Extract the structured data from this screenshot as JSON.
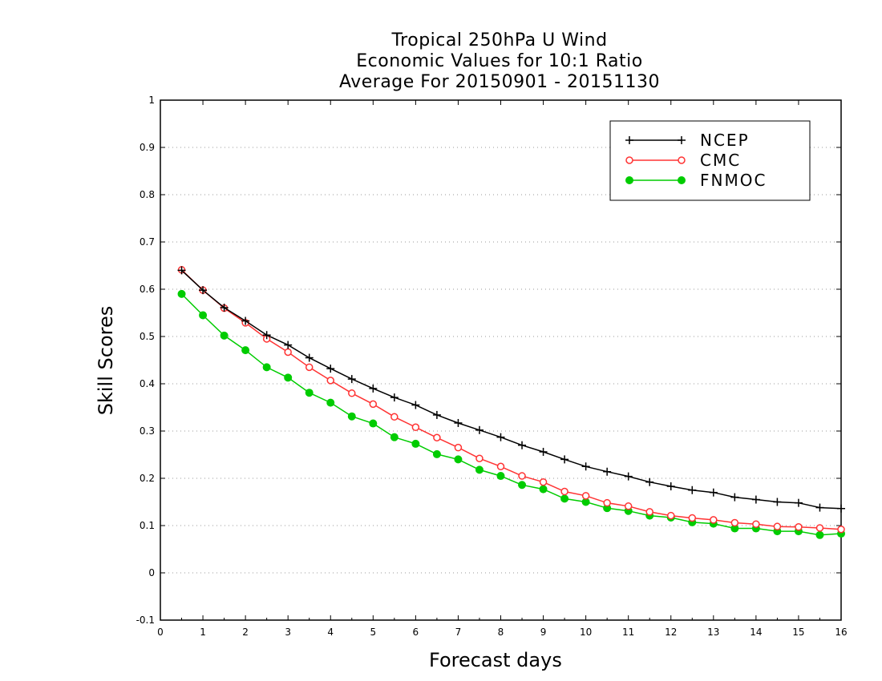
{
  "chart_data": {
    "type": "line",
    "title_lines": [
      "Tropical 250hPa U Wind",
      "Economic Values for 10:1 Ratio",
      "Average For 20150901 - 20151130"
    ],
    "xlabel": "Forecast days",
    "ylabel": "Skill Scores",
    "xlim": [
      0,
      16
    ],
    "ylim": [
      -0.1,
      1
    ],
    "xticks": [
      0,
      1,
      2,
      3,
      4,
      5,
      6,
      7,
      8,
      9,
      10,
      11,
      12,
      13,
      14,
      15,
      16
    ],
    "yticks": [
      -0.1,
      0,
      0.1,
      0.2,
      0.3,
      0.4,
      0.5,
      0.6,
      0.7,
      0.8,
      0.9,
      1
    ],
    "ytick_labels": [
      "-0.1",
      "0",
      "0.1",
      "0.2",
      "0.3",
      "0.4",
      "0.5",
      "0.6",
      "0.7",
      "0.8",
      "0.9",
      "1"
    ],
    "grid": "horizontal dotted",
    "legend_position": "top-right",
    "x": [
      0.5,
      1,
      1.5,
      2,
      2.5,
      3,
      3.5,
      4,
      4.5,
      5,
      5.5,
      6,
      6.5,
      7,
      7.5,
      8,
      8.5,
      9,
      9.5,
      10,
      10.5,
      11,
      11.5,
      12,
      12.5,
      13,
      13.5,
      14,
      14.5,
      15,
      15.5,
      16
    ],
    "series": [
      {
        "name": "NCEP",
        "color": "#000000",
        "marker": "plus",
        "values": [
          0.64,
          0.598,
          0.561,
          0.533,
          0.503,
          0.482,
          0.455,
          0.432,
          0.41,
          0.39,
          0.371,
          0.355,
          0.334,
          0.317,
          0.302,
          0.287,
          0.27,
          0.256,
          0.24,
          0.225,
          0.214,
          0.204,
          0.192,
          0.183,
          0.175,
          0.17,
          0.16,
          0.155,
          0.15,
          0.148,
          0.138,
          0.136
        ]
      },
      {
        "name": "CMC",
        "color": "#ff3333",
        "marker": "open-circle",
        "values": [
          0.641,
          0.598,
          0.56,
          0.529,
          0.495,
          0.467,
          0.435,
          0.407,
          0.38,
          0.357,
          0.33,
          0.308,
          0.286,
          0.265,
          0.242,
          0.225,
          0.205,
          0.192,
          0.172,
          0.163,
          0.148,
          0.141,
          0.129,
          0.121,
          0.116,
          0.112,
          0.106,
          0.103,
          0.098,
          0.097,
          0.095,
          0.092
        ]
      },
      {
        "name": "FNMOC",
        "color": "#00cc00",
        "marker": "filled-circle",
        "values": [
          0.59,
          0.545,
          0.502,
          0.471,
          0.435,
          0.413,
          0.381,
          0.36,
          0.331,
          0.316,
          0.287,
          0.273,
          0.251,
          0.24,
          0.218,
          0.205,
          0.186,
          0.177,
          0.157,
          0.15,
          0.137,
          0.131,
          0.121,
          0.117,
          0.107,
          0.104,
          0.094,
          0.094,
          0.088,
          0.088,
          0.08,
          0.083
        ]
      }
    ]
  }
}
